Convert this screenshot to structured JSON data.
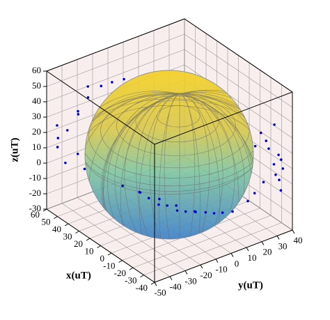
{
  "chart_data": {
    "type": "scatter3d",
    "xlabel": "x(uT)",
    "ylabel": "y(uT)",
    "zlabel": "z(uT)",
    "xlim": [
      -40,
      60
    ],
    "ylim": [
      -50,
      40
    ],
    "zlim": [
      -30,
      60
    ],
    "xticks": [
      60,
      50,
      40,
      30,
      20,
      10,
      0,
      -10,
      -20,
      -30,
      -40
    ],
    "yticks": [
      -50,
      -40,
      -30,
      -20,
      -10,
      0,
      10,
      20,
      30,
      40
    ],
    "zticks": [
      60,
      50,
      40,
      30,
      20,
      10,
      0,
      -10,
      -20,
      -30
    ],
    "grid": true,
    "color": "#0000cc",
    "sphere": {
      "center": [
        6.5,
        -7.7,
        15
      ],
      "radius": 55
    },
    "x": [
      55,
      52,
      57,
      50,
      48,
      54,
      58,
      53,
      45,
      49,
      56,
      51,
      42,
      38,
      30,
      25,
      20,
      15,
      10,
      5,
      0,
      -5,
      -10,
      -15,
      -20,
      35,
      28,
      18,
      8,
      -2,
      -30,
      -28,
      -32,
      -25,
      -35,
      -30,
      -27,
      -33,
      -22,
      -29,
      -31,
      -26,
      -24,
      -34,
      -20
    ],
    "y": [
      -40,
      -35,
      -45,
      -30,
      -38,
      -42,
      -44,
      -28,
      -25,
      -33,
      -46,
      -36,
      -20,
      -15,
      -10,
      -8,
      -5,
      -3,
      0,
      2,
      5,
      8,
      10,
      12,
      15,
      -18,
      -12,
      -6,
      -2,
      3,
      35,
      33,
      37,
      30,
      36,
      38,
      32,
      34,
      28,
      36,
      39,
      31,
      27,
      38,
      25
    ],
    "z": [
      20,
      30,
      10,
      40,
      35,
      0,
      15,
      45,
      48,
      -5,
      25,
      5,
      50,
      52,
      -20,
      -22,
      -25,
      -24,
      -26,
      -25,
      -24,
      -23,
      -22,
      -20,
      -18,
      -15,
      -18,
      -20,
      -21,
      -22,
      10,
      20,
      0,
      30,
      -5,
      15,
      25,
      5,
      -10,
      35,
      12,
      -2,
      22,
      8,
      -15
    ]
  }
}
